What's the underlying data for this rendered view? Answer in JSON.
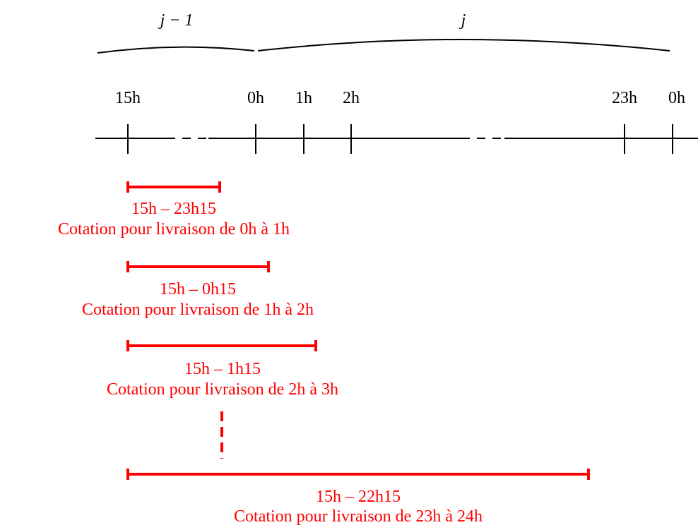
{
  "periods": [
    "j − 1",
    "j"
  ],
  "ticks": [
    "15h",
    "0h",
    "1h",
    "2h",
    "23h",
    "0h"
  ],
  "intervals": [
    {
      "range": "15h – 23h15",
      "caption": "Cotation pour livraison de 0h à 1h"
    },
    {
      "range": "15h – 0h15",
      "caption": "Cotation pour livraison de 1h à 2h"
    },
    {
      "range": "15h – 1h15",
      "caption": "Cotation pour livraison de 2h à 3h"
    },
    {
      "range": "15h – 22h15",
      "caption": "Cotation pour livraison de 23h à 24h"
    }
  ]
}
